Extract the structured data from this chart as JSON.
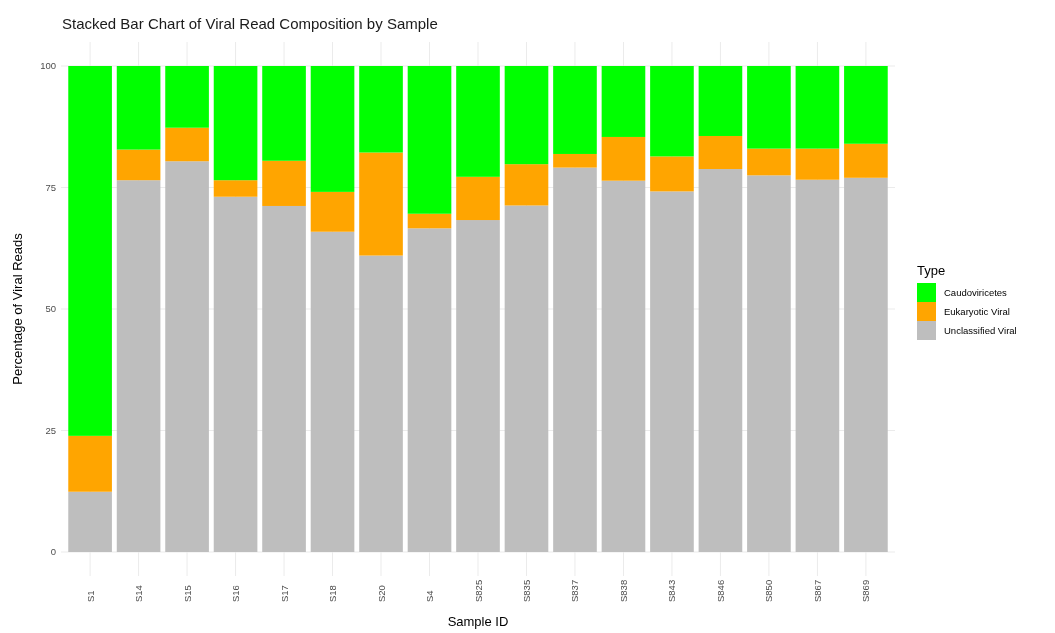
{
  "chart_data": {
    "type": "bar",
    "stacked": true,
    "title": "Stacked Bar Chart of Viral Read Composition by Sample",
    "xlabel": "Sample ID",
    "ylabel": "Percentage of Viral Reads",
    "legend_title": "Type",
    "legend": "right",
    "grid": true,
    "categories": [
      "S1",
      "S14",
      "S15",
      "S16",
      "S17",
      "S18",
      "S20",
      "S4",
      "S825",
      "S835",
      "S837",
      "S838",
      "S843",
      "S846",
      "S850",
      "S867",
      "S869"
    ],
    "series": [
      {
        "name": "Unclassified Viral",
        "color": "#bebebe",
        "values": [
          12.4,
          76.5,
          80.4,
          73.1,
          71.2,
          65.9,
          61.0,
          66.6,
          68.3,
          71.3,
          79.1,
          76.4,
          74.2,
          78.8,
          77.5,
          76.6,
          77.0
        ]
      },
      {
        "name": "Eukaryotic Viral",
        "color": "#ffa500",
        "values": [
          11.5,
          6.3,
          6.9,
          3.4,
          9.3,
          8.2,
          21.2,
          3.0,
          8.9,
          8.5,
          2.8,
          9.0,
          7.2,
          6.8,
          5.5,
          6.4,
          7.0
        ]
      },
      {
        "name": "Caudoviricetes",
        "color": "#00ff00",
        "values": [
          76.1,
          17.2,
          12.7,
          23.5,
          19.5,
          25.9,
          17.8,
          30.4,
          22.8,
          20.2,
          18.1,
          14.6,
          18.6,
          14.4,
          17.0,
          17.0,
          16.0
        ]
      }
    ],
    "ylim": [
      0,
      100
    ],
    "yticks": [
      0,
      25,
      50,
      75,
      100
    ]
  }
}
